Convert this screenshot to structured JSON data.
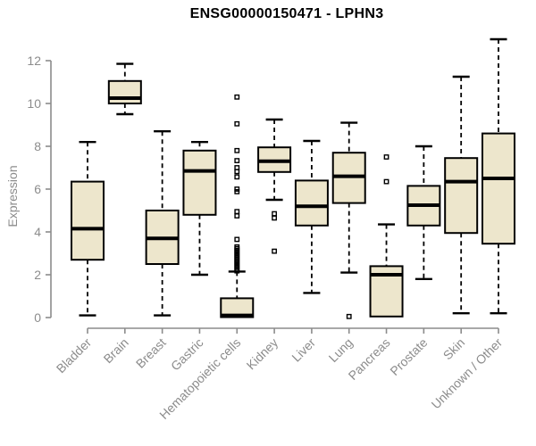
{
  "chart_data": {
    "type": "boxplot",
    "title": "ENSG00000150471 - LPHN3",
    "ylabel": "Expression",
    "xlabel": "",
    "ylim": [
      0,
      12
    ],
    "yticks": [
      0,
      2,
      4,
      6,
      8,
      10,
      12
    ],
    "grid": false,
    "legend": "none",
    "colors": {
      "box_fill": "#EDE6CC",
      "box_stroke": "#000000",
      "axis": "#8C8C8C",
      "title_text": "#000000",
      "background": "#FFFFFF"
    },
    "categories": [
      "Bladder",
      "Brain",
      "Breast",
      "Gastric",
      "Hematopoietic cells",
      "Kidney",
      "Liver",
      "Lung",
      "Pancreas",
      "Prostate",
      "Skin",
      "Unknown / Other"
    ],
    "series": [
      {
        "category": "Bladder",
        "whisker_low": 0.1,
        "q1": 2.7,
        "median": 4.15,
        "q3": 6.35,
        "whisker_high": 8.2,
        "outliers": []
      },
      {
        "category": "Brain",
        "whisker_low": 9.5,
        "q1": 10.0,
        "median": 10.25,
        "q3": 11.05,
        "whisker_high": 11.85,
        "outliers": []
      },
      {
        "category": "Breast",
        "whisker_low": 0.1,
        "q1": 2.5,
        "median": 3.7,
        "q3": 5.0,
        "whisker_high": 8.7,
        "outliers": []
      },
      {
        "category": "Gastric",
        "whisker_low": 2.0,
        "q1": 4.8,
        "median": 6.85,
        "q3": 7.8,
        "whisker_high": 8.2,
        "outliers": []
      },
      {
        "category": "Hematopoietic cells",
        "whisker_low": 0.02,
        "q1": 0.02,
        "median": 0.1,
        "q3": 0.9,
        "whisker_high": 2.15,
        "outliers": [
          10.3,
          9.05,
          7.8,
          7.33,
          7.0,
          6.82,
          6.57,
          6.0,
          5.88,
          4.95,
          4.75,
          3.65,
          3.3,
          3.22,
          3.14,
          3.06,
          2.98,
          2.9,
          2.82,
          2.74,
          2.66,
          2.58,
          2.5,
          2.42,
          2.34,
          2.26,
          2.18
        ]
      },
      {
        "category": "Kidney",
        "whisker_low": 5.5,
        "q1": 6.8,
        "median": 7.3,
        "q3": 7.95,
        "whisker_high": 9.25,
        "outliers": [
          4.85,
          4.65,
          3.1
        ]
      },
      {
        "category": "Liver",
        "whisker_low": 1.15,
        "q1": 4.3,
        "median": 5.2,
        "q3": 6.4,
        "whisker_high": 8.25,
        "outliers": []
      },
      {
        "category": "Lung",
        "whisker_low": 2.1,
        "q1": 5.35,
        "median": 6.6,
        "q3": 7.7,
        "whisker_high": 9.1,
        "outliers": [
          0.05
        ]
      },
      {
        "category": "Pancreas",
        "whisker_low": 0.05,
        "q1": 0.05,
        "median": 2.0,
        "q3": 2.4,
        "whisker_high": 4.35,
        "outliers": [
          7.5,
          6.35
        ]
      },
      {
        "category": "Prostate",
        "whisker_low": 1.8,
        "q1": 4.3,
        "median": 5.25,
        "q3": 6.15,
        "whisker_high": 8.0,
        "outliers": []
      },
      {
        "category": "Skin",
        "whisker_low": 0.2,
        "q1": 3.95,
        "median": 6.35,
        "q3": 7.45,
        "whisker_high": 11.25,
        "outliers": []
      },
      {
        "category": "Unknown / Other",
        "whisker_low": 0.2,
        "q1": 3.45,
        "median": 6.5,
        "q3": 8.6,
        "whisker_high": 13.0,
        "outliers": []
      }
    ]
  }
}
